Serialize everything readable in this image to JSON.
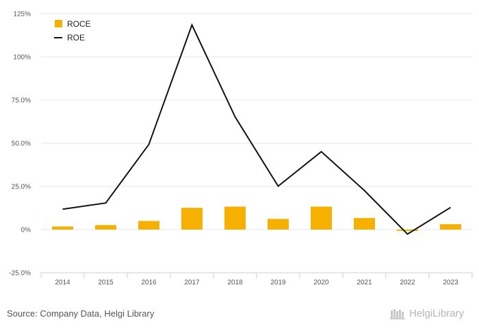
{
  "chart_data": {
    "type": "bar",
    "categories": [
      "2014",
      "2015",
      "2016",
      "2017",
      "2018",
      "2019",
      "2020",
      "2021",
      "2022",
      "2023"
    ],
    "series": [
      {
        "name": "ROCE",
        "type": "bar",
        "color": "#F5B000",
        "values": [
          1.8,
          2.6,
          5.0,
          12.6,
          13.3,
          6.2,
          13.3,
          6.7,
          -0.8,
          3.1
        ]
      },
      {
        "name": "ROE",
        "type": "line",
        "color": "#111111",
        "values": [
          11.8,
          15.4,
          49.3,
          118.5,
          65.3,
          25.1,
          45.1,
          22.6,
          -2.6,
          12.8
        ]
      }
    ],
    "yticks": [
      "-25.0%",
      "0%",
      "25.0%",
      "50.0%",
      "75.0%",
      "100%",
      "125%"
    ],
    "ylim": [
      -25,
      125
    ],
    "grid": true,
    "legend_position": "top-left"
  },
  "footer": {
    "source": "Source: Company Data, Helgi Library",
    "brand": "HelgiLibrary"
  }
}
